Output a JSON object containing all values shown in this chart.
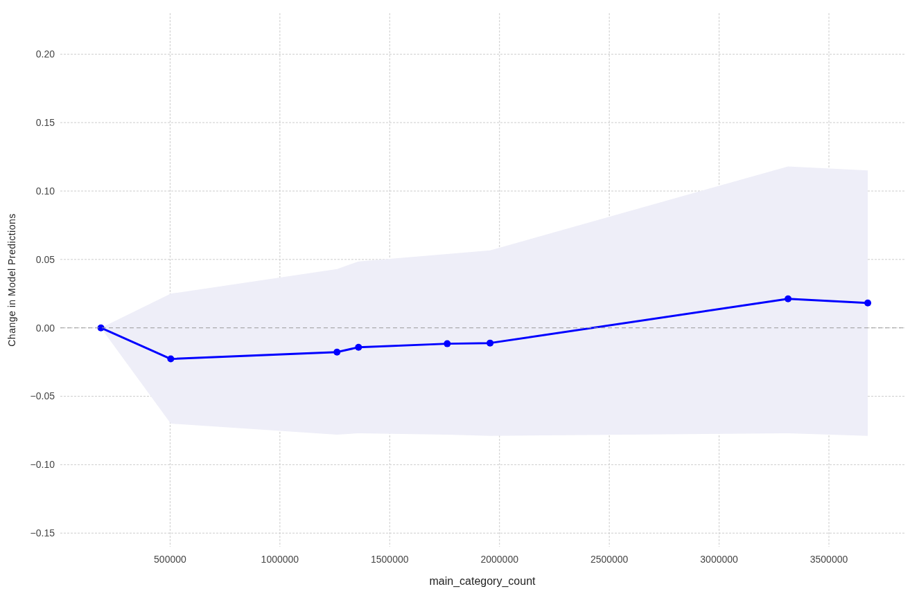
{
  "chart_data": {
    "type": "line",
    "xlabel": "main_category_count",
    "ylabel": "Change in Model Predictions",
    "x": [
      185000,
      503000,
      1260000,
      1358000,
      1762000,
      1957000,
      3314000,
      3677000
    ],
    "series": [
      {
        "color": "#0000ff",
        "values": [
          0,
          -0.0227,
          -0.0177,
          -0.0142,
          -0.0116,
          -0.0111,
          0.0212,
          0.0182
        ],
        "lower": [
          0,
          -0.07,
          -0.078,
          -0.077,
          -0.078,
          -0.079,
          -0.077,
          -0.079
        ],
        "upper": [
          0,
          0.025,
          0.043,
          0.0485,
          0.054,
          0.0566,
          0.118,
          0.115
        ]
      }
    ],
    "xlim": [
      0,
      3844000
    ],
    "xticks": [
      500000,
      1000000,
      1500000,
      2000000,
      2500000,
      3000000,
      3500000
    ],
    "ylim": [
      -0.16,
      0.23
    ],
    "yticks": [
      {
        "value": -0.15,
        "label": "−0.15"
      },
      {
        "value": -0.1,
        "label": "−0.10"
      },
      {
        "value": -0.05,
        "label": "−0.05"
      },
      {
        "value": 0,
        "label": "0.00"
      },
      {
        "value": 0.05,
        "label": "0.05"
      },
      {
        "value": 0.1,
        "label": "0.10"
      },
      {
        "value": 0.15,
        "label": "0.15"
      },
      {
        "value": 0.2,
        "label": "0.20"
      }
    ],
    "ref_lines": [
      {
        "axis": "y",
        "value": 0,
        "color": "#999999",
        "line_style": "dashed"
      }
    ],
    "grid": true,
    "marker": "circle",
    "line_style": "solid"
  }
}
